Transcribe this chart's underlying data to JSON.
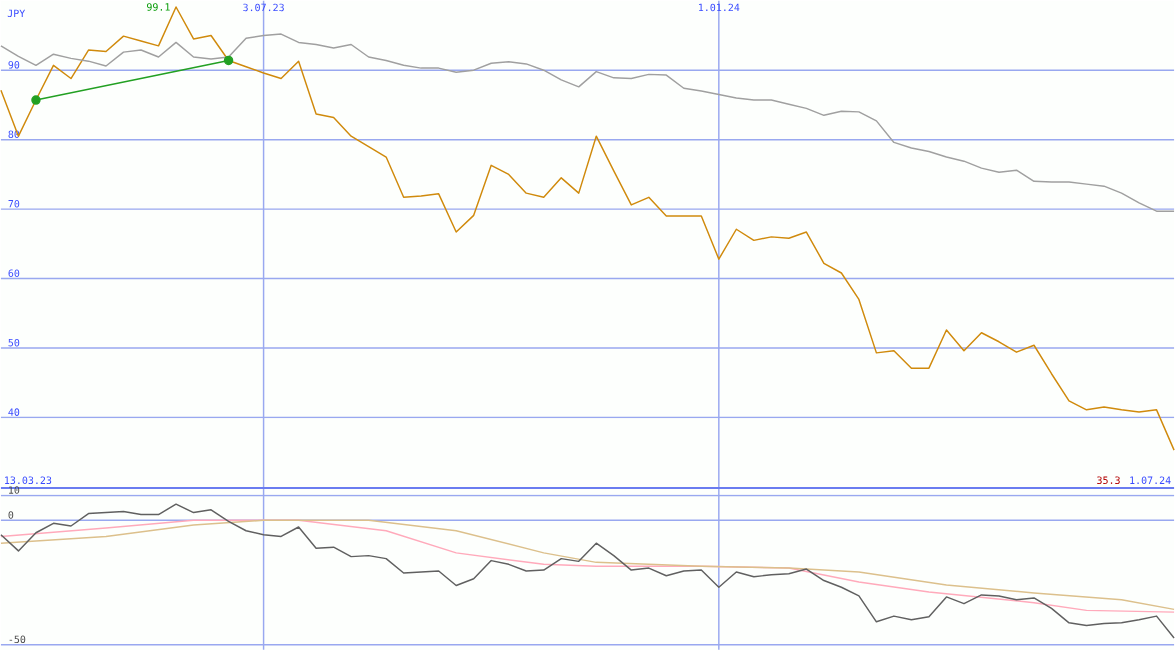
{
  "chart_data": [
    {
      "type": "line",
      "ylabel": "JPY",
      "x": [
        "2023-03-20",
        "2023-03-27",
        "2023-04-03",
        "2023-04-10",
        "2023-04-17",
        "2023-04-24",
        "2023-05-01",
        "2023-05-08",
        "2023-05-15",
        "2023-05-22",
        "2023-05-29",
        "2023-06-05",
        "2023-06-12",
        "2023-06-19",
        "2023-06-26",
        "2023-07-03",
        "2023-07-10",
        "2023-07-17",
        "2023-07-24",
        "2023-07-31",
        "2023-08-07",
        "2023-08-14",
        "2023-08-21",
        "2023-08-28",
        "2023-09-04",
        "2023-09-11",
        "2023-09-18",
        "2023-09-25",
        "2023-10-02",
        "2023-10-09",
        "2023-10-16",
        "2023-10-23",
        "2023-10-30",
        "2023-11-06",
        "2023-11-13",
        "2023-11-20",
        "2023-11-27",
        "2023-12-04",
        "2023-12-11",
        "2023-12-18",
        "2023-12-25",
        "2024-01-01",
        "2024-01-08",
        "2024-01-15",
        "2024-01-22",
        "2024-01-29",
        "2024-02-05",
        "2024-02-12",
        "2024-02-19",
        "2024-02-26",
        "2024-03-04",
        "2024-03-11",
        "2024-03-18",
        "2024-03-25",
        "2024-04-01",
        "2024-04-08",
        "2024-04-15",
        "2024-04-22",
        "2024-04-29",
        "2024-05-06",
        "2024-05-13",
        "2024-05-20",
        "2024-05-27",
        "2024-06-03",
        "2024-06-10",
        "2024-06-17",
        "2024-06-24",
        "2024-07-01"
      ],
      "series": [
        {
          "color": "#d08a0c",
          "values": [
            87.1,
            80.5,
            85.7,
            90.7,
            88.8,
            92.9,
            92.7,
            94.9,
            94.2,
            93.5,
            99.1,
            94.5,
            95.0,
            91.4,
            90.5,
            89.6,
            88.8,
            91.3,
            83.7,
            83.2,
            80.5,
            79.0,
            77.5,
            71.7,
            71.9,
            72.2,
            66.7,
            69.1,
            76.3,
            75.0,
            72.3,
            71.7,
            74.5,
            72.3,
            80.5,
            75.5,
            70.6,
            71.7,
            69.0,
            69.0,
            69.0,
            62.8,
            67.1,
            65.5,
            66.0,
            65.8,
            66.7,
            62.2,
            60.8,
            57.0,
            49.3,
            49.6,
            47.1,
            47.1,
            52.6,
            49.6,
            52.2,
            50.9,
            49.4,
            50.4,
            46.3,
            42.4,
            41.1,
            41.5,
            41.1,
            40.8,
            41.1,
            35.3
          ]
        },
        {
          "color": "#a0a0a0",
          "values": [
            93.5,
            92.0,
            90.7,
            92.3,
            91.7,
            91.3,
            90.6,
            92.6,
            92.9,
            91.9,
            94.0,
            91.9,
            91.6,
            91.9,
            94.6,
            95.0,
            95.2,
            94.0,
            93.7,
            93.2,
            93.7,
            91.9,
            91.4,
            90.7,
            90.3,
            90.3,
            89.7,
            90.0,
            91.0,
            91.2,
            90.9,
            90.0,
            88.6,
            87.6,
            89.8,
            88.9,
            88.8,
            89.4,
            89.3,
            87.4,
            87.0,
            86.5,
            86.0,
            85.7,
            85.7,
            85.1,
            84.5,
            83.5,
            84.1,
            84.0,
            82.7,
            79.6,
            78.8,
            78.3,
            77.5,
            76.9,
            75.9,
            75.3,
            75.6,
            74.0,
            73.9,
            73.9,
            73.6,
            73.3,
            72.3,
            70.9,
            69.7,
            69.7
          ]
        },
        {
          "color": "#22a022",
          "marker": "circle",
          "x": [
            "2023-04-03",
            "2023-06-19"
          ],
          "values": [
            85.7,
            91.4
          ]
        }
      ],
      "xlim": [
        "2023-03-20",
        "2024-07-01"
      ],
      "xticks": [
        {
          "value": "2023-07-03",
          "label": "3.07.23"
        },
        {
          "value": "2024-01-01",
          "label": "1.01.24"
        }
      ],
      "ylim": [
        30,
        100
      ],
      "yticks": [
        40,
        50,
        60,
        70,
        80,
        90
      ],
      "grid": true,
      "annotations": [
        "13.03.23",
        {
          "text": "99.1",
          "x": "2023-05-29",
          "y": 99.1
        },
        "35.3",
        "1.07.24"
      ]
    },
    {
      "type": "line",
      "x": [
        "2023-03-20",
        "2023-03-27",
        "2023-04-03",
        "2023-04-10",
        "2023-04-17",
        "2023-04-24",
        "2023-05-01",
        "2023-05-08",
        "2023-05-15",
        "2023-05-22",
        "2023-05-29",
        "2023-06-05",
        "2023-06-12",
        "2023-06-19",
        "2023-06-26",
        "2023-07-03",
        "2023-07-10",
        "2023-07-17",
        "2023-07-24",
        "2023-07-31",
        "2023-08-07",
        "2023-08-14",
        "2023-08-21",
        "2023-08-28",
        "2023-09-04",
        "2023-09-11",
        "2023-09-18",
        "2023-09-25",
        "2023-10-02",
        "2023-10-09",
        "2023-10-16",
        "2023-10-23",
        "2023-10-30",
        "2023-11-06",
        "2023-11-13",
        "2023-11-20",
        "2023-11-27",
        "2023-12-04",
        "2023-12-11",
        "2023-12-18",
        "2023-12-25",
        "2024-01-01",
        "2024-01-08",
        "2024-01-15",
        "2024-01-22",
        "2024-01-29",
        "2024-02-05",
        "2024-02-12",
        "2024-02-19",
        "2024-02-26",
        "2024-03-04",
        "2024-03-11",
        "2024-03-18",
        "2024-03-25",
        "2024-04-01",
        "2024-04-08",
        "2024-04-15",
        "2024-04-22",
        "2024-04-29",
        "2024-05-06",
        "2024-05-13",
        "2024-05-20",
        "2024-05-27",
        "2024-06-03",
        "2024-06-10",
        "2024-06-17",
        "2024-06-24",
        "2024-07-01"
      ],
      "series": [
        {
          "color": "#ffaabb",
          "x": [
            "2023-03-20",
            "2023-05-01",
            "2023-06-05",
            "2023-07-17",
            "2023-08-21",
            "2023-09-18",
            "2023-10-23",
            "2023-11-13",
            "2023-12-25",
            "2024-01-29",
            "2024-02-26",
            "2024-03-25",
            "2024-05-06",
            "2024-05-27",
            "2024-07-01"
          ],
          "values": [
            -6.5,
            -3.1,
            0.0,
            0.0,
            -4.2,
            -13.1,
            -17.7,
            -18.5,
            -18.5,
            -19.2,
            -24.8,
            -28.8,
            -33.1,
            -36.2,
            -36.9
          ]
        },
        {
          "color": "#dcc08c",
          "x": [
            "2023-03-20",
            "2023-05-01",
            "2023-06-05",
            "2023-07-03",
            "2023-08-14",
            "2023-09-18",
            "2023-10-23",
            "2023-11-13",
            "2023-12-25",
            "2024-01-29",
            "2024-02-26",
            "2024-04-01",
            "2024-05-06",
            "2024-06-10",
            "2024-07-01"
          ],
          "values": [
            -9.2,
            -6.5,
            -1.9,
            0.0,
            0.0,
            -4.2,
            -13.1,
            -16.9,
            -18.5,
            -19.2,
            -20.8,
            -26.0,
            -29.2,
            -31.9,
            -35.8
          ]
        },
        {
          "color": "#606060",
          "values": [
            -5.8,
            -12.3,
            -5.0,
            -1.2,
            -2.3,
            2.7,
            3.1,
            3.5,
            2.3,
            2.3,
            6.5,
            3.1,
            4.2,
            -0.4,
            -4.2,
            -5.8,
            -6.5,
            -2.7,
            -11.2,
            -10.8,
            -14.6,
            -14.2,
            -15.4,
            -21.2,
            -20.8,
            -20.4,
            -26.2,
            -23.5,
            -16.2,
            -17.7,
            -20.4,
            -20.0,
            -15.4,
            -16.5,
            -9.2,
            -14.2,
            -20.0,
            -19.2,
            -22.3,
            -20.4,
            -20.0,
            -26.9,
            -20.8,
            -22.7,
            -21.9,
            -21.5,
            -19.6,
            -24.2,
            -26.9,
            -30.4,
            -40.8,
            -38.5,
            -40.0,
            -38.8,
            -30.8,
            -33.5,
            -30.0,
            -30.4,
            -31.9,
            -31.2,
            -35.4,
            -41.2,
            -42.3,
            -41.5,
            -41.2,
            -40.0,
            -38.5,
            -47.3
          ]
        }
      ],
      "xlim": [
        "2023-03-20",
        "2024-07-01"
      ],
      "xticks": [
        {
          "value": "2023-07-03",
          "label": null
        },
        {
          "value": "2024-01-01",
          "label": null
        }
      ],
      "ylim": [
        -52,
        13
      ],
      "yticks": [
        10,
        0,
        -50
      ],
      "grid": true,
      "tick_labels": "y"
    }
  ]
}
